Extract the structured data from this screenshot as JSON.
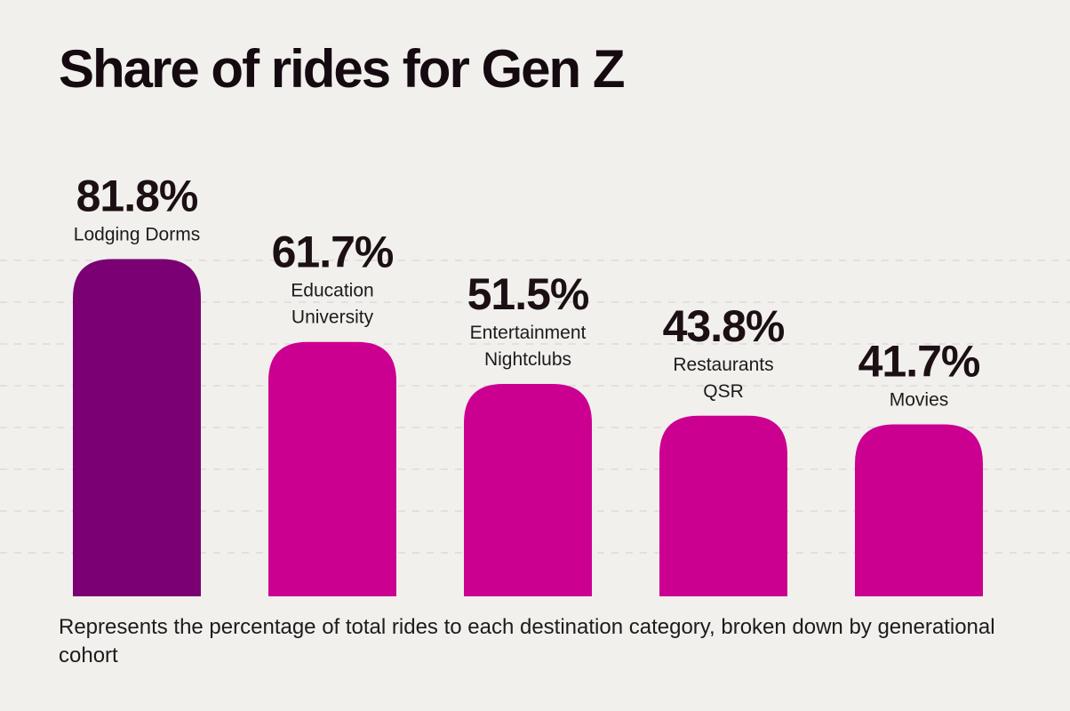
{
  "chart_data": {
    "type": "bar",
    "title": "Share of rides for Gen Z",
    "caption": "Represents the percentage of total rides to each destination category, broken down by generational cohort",
    "xlabel": "",
    "ylabel": "",
    "ylim": [
      0,
      100
    ],
    "grid": true,
    "bars": [
      {
        "lines": [
          "Lodging Dorms"
        ],
        "value": 81.8,
        "value_label": "81.8%",
        "color": "#7b0073"
      },
      {
        "lines": [
          "Education",
          "University"
        ],
        "value": 61.7,
        "value_label": "61.7%",
        "color": "#cc0090"
      },
      {
        "lines": [
          "Entertainment",
          "Nightclubs"
        ],
        "value": 51.5,
        "value_label": "51.5%",
        "color": "#cc0090"
      },
      {
        "lines": [
          "Restaurants",
          "QSR"
        ],
        "value": 43.8,
        "value_label": "43.8%",
        "color": "#cc0090"
      },
      {
        "lines": [
          "Movies"
        ],
        "value": 41.7,
        "value_label": "41.7%",
        "color": "#cc0090"
      }
    ]
  }
}
